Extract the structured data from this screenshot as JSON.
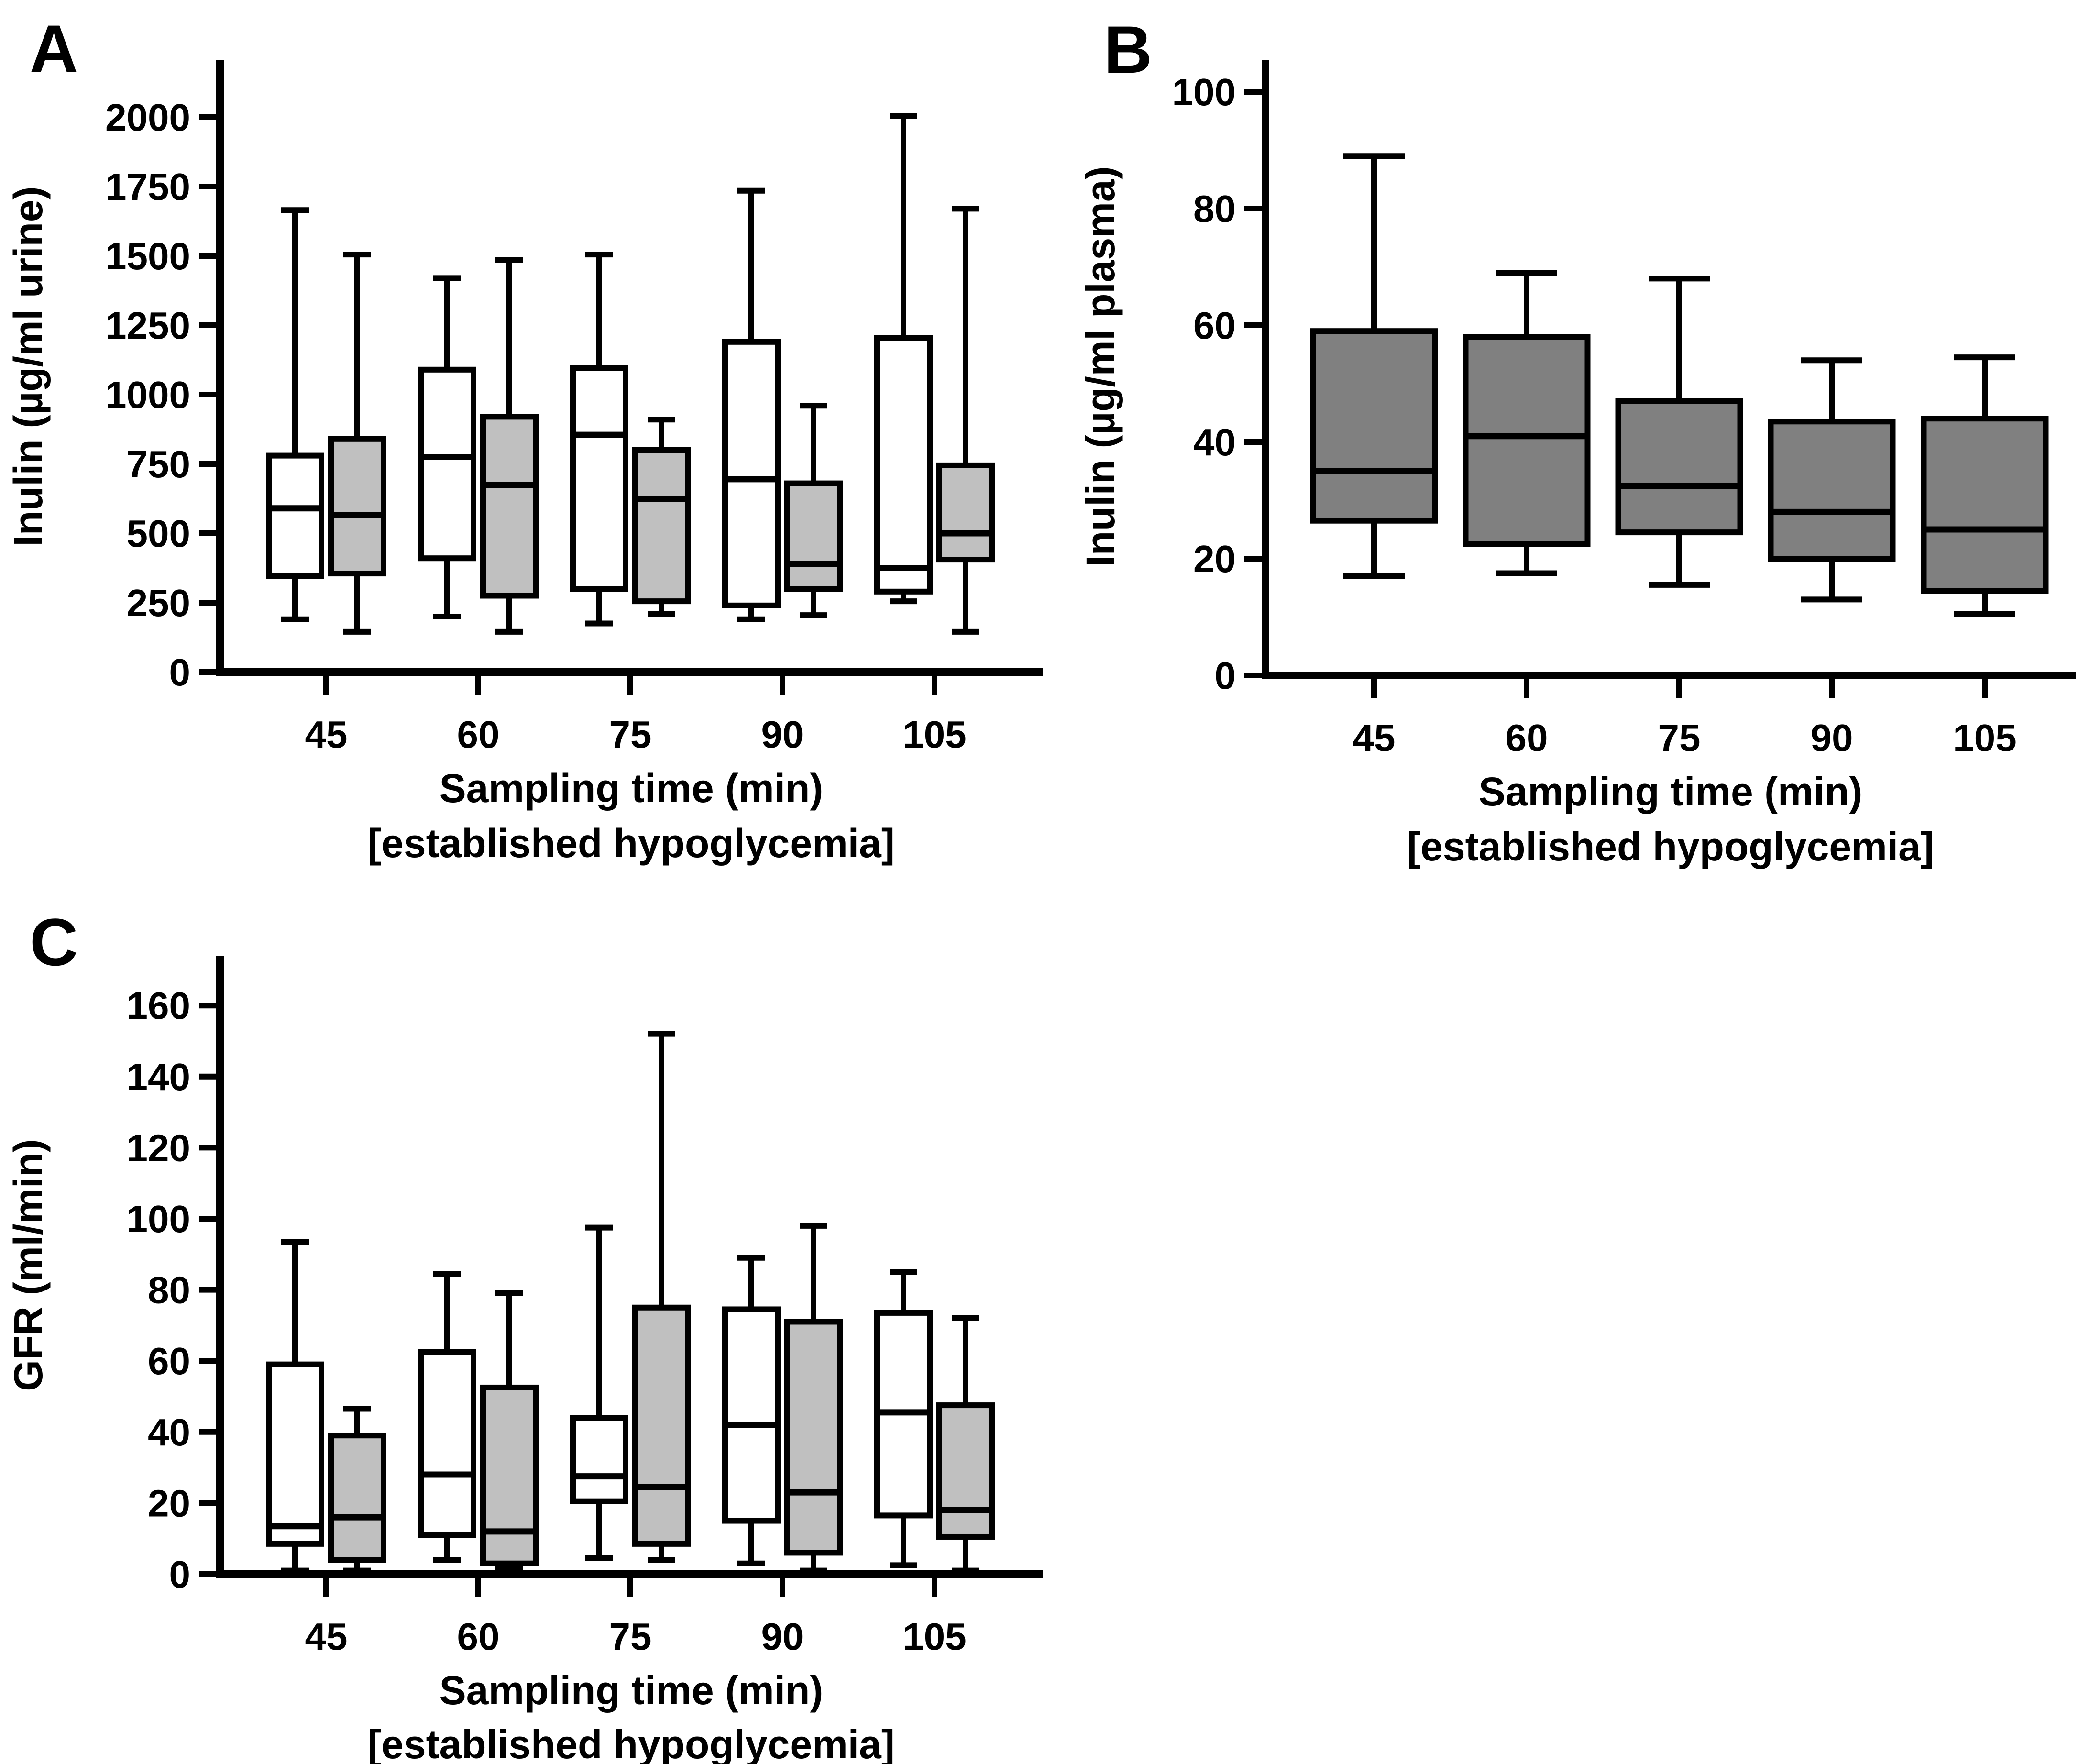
{
  "figure": {
    "background": "#ffffff",
    "stroke_color": "#000000",
    "box_fill_white": "#ffffff",
    "box_fill_light_gray": "#c0c0c0",
    "box_fill_dark_gray": "#808080"
  },
  "panels": [
    {
      "label": "A"
    },
    {
      "label": "B"
    },
    {
      "label": "C"
    }
  ],
  "chart_data": [
    {
      "panel": "A",
      "type": "box",
      "title": "",
      "ylabel": "Inulin (µg/ml urine)",
      "xlabel": "Sampling time (min)",
      "xlabel2": "[established hypoglycemia]",
      "ylim": [
        0,
        2200
      ],
      "yticks": [
        0,
        250,
        500,
        750,
        1000,
        1250,
        1500,
        1750,
        2000
      ],
      "categories": [
        "45",
        "60",
        "75",
        "90",
        "105"
      ],
      "grid": false,
      "legend": "none",
      "box_value_order": [
        "whisker_low",
        "q1",
        "median",
        "q3",
        "whisker_high"
      ],
      "series": [
        {
          "name": "white",
          "fill": "#ffffff",
          "boxes": [
            [
              190,
              345,
              590,
              780,
              1665
            ],
            [
              200,
              410,
              775,
              1090,
              1420
            ],
            [
              175,
              300,
              855,
              1095,
              1505
            ],
            [
              190,
              240,
              695,
              1190,
              1735
            ],
            [
              255,
              290,
              375,
              1205,
              2005
            ]
          ]
        },
        {
          "name": "gray",
          "fill": "#c0c0c0",
          "boxes": [
            [
              145,
              355,
              565,
              840,
              1505
            ],
            [
              145,
              275,
              675,
              920,
              1485
            ],
            [
              210,
              255,
              625,
              800,
              910
            ],
            [
              205,
              300,
              390,
              680,
              960
            ],
            [
              145,
              405,
              500,
              745,
              1670
            ]
          ]
        }
      ]
    },
    {
      "panel": "B",
      "type": "box",
      "title": "",
      "ylabel": "Inulin (µg/ml plasma)",
      "xlabel": "Sampling time (min)",
      "xlabel2": "[established hypoglycemia]",
      "ylim": [
        0,
        105
      ],
      "yticks": [
        0,
        20,
        40,
        60,
        80,
        100
      ],
      "categories": [
        "45",
        "60",
        "75",
        "90",
        "105"
      ],
      "grid": false,
      "legend": "none",
      "box_value_order": [
        "whisker_low",
        "q1",
        "median",
        "q3",
        "whisker_high"
      ],
      "series": [
        {
          "name": "gray",
          "fill": "#808080",
          "boxes": [
            [
              17,
              26.5,
              35,
              59,
              89
            ],
            [
              17.5,
              22.5,
              41,
              58,
              69
            ],
            [
              15.5,
              24.5,
              32.5,
              47,
              68
            ],
            [
              13,
              20,
              28,
              43.5,
              54
            ],
            [
              10.5,
              14.5,
              25,
              44,
              54.5
            ]
          ]
        }
      ]
    },
    {
      "panel": "C",
      "type": "box",
      "title": "",
      "ylabel": "GFR (ml/min)",
      "xlabel": "Sampling time (min)",
      "xlabel2": "[established hypoglycemia]",
      "ylim": [
        0,
        174
      ],
      "yticks": [
        0,
        20,
        40,
        60,
        80,
        100,
        120,
        140,
        160
      ],
      "categories": [
        "45",
        "60",
        "75",
        "90",
        "105"
      ],
      "grid": false,
      "legend": "none",
      "box_value_order": [
        "whisker_low",
        "q1",
        "median",
        "q3",
        "whisker_high"
      ],
      "series": [
        {
          "name": "white",
          "fill": "#ffffff",
          "boxes": [
            [
              1,
              8.5,
              13.5,
              59,
              93.5
            ],
            [
              4,
              11,
              28,
              62.5,
              84.5
            ],
            [
              4.5,
              20.5,
              27.5,
              44,
              97.5
            ],
            [
              3,
              15,
              42,
              74.5,
              89
            ],
            [
              2.5,
              16.5,
              45.5,
              73.5,
              85
            ]
          ]
        },
        {
          "name": "gray",
          "fill": "#c0c0c0",
          "boxes": [
            [
              1,
              4,
              16,
              39,
              46.5
            ],
            [
              2,
              3,
              12,
              52.5,
              79
            ],
            [
              4,
              8.5,
              24.5,
              75,
              152
            ],
            [
              1,
              6,
              23,
              71,
              98
            ],
            [
              1,
              10.5,
              18,
              47.5,
              72
            ]
          ]
        }
      ]
    }
  ]
}
